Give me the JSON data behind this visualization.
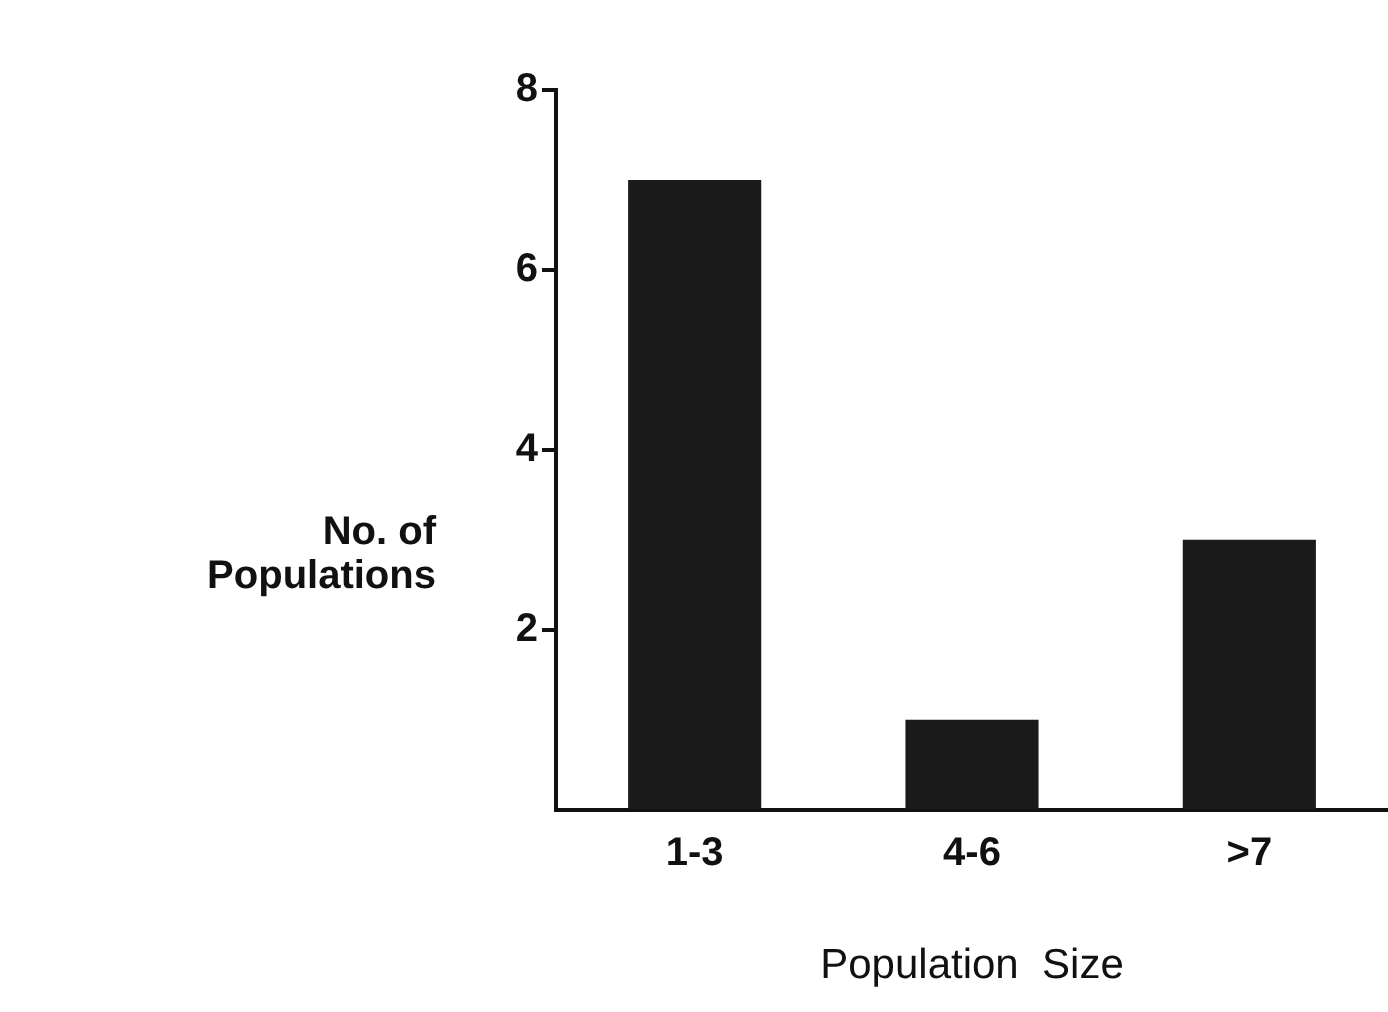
{
  "chart_data": {
    "type": "bar",
    "xlabel": "Population  Size",
    "ylabel": "No. of\nPopulations",
    "categories": [
      "1-3",
      "4-6",
      ">7"
    ],
    "values": [
      7,
      1,
      3
    ],
    "color": "#1a1a1a",
    "ylim": [
      0,
      8
    ],
    "yticks": [
      2,
      4,
      6,
      8
    ],
    "grid": false,
    "legend": false
  }
}
